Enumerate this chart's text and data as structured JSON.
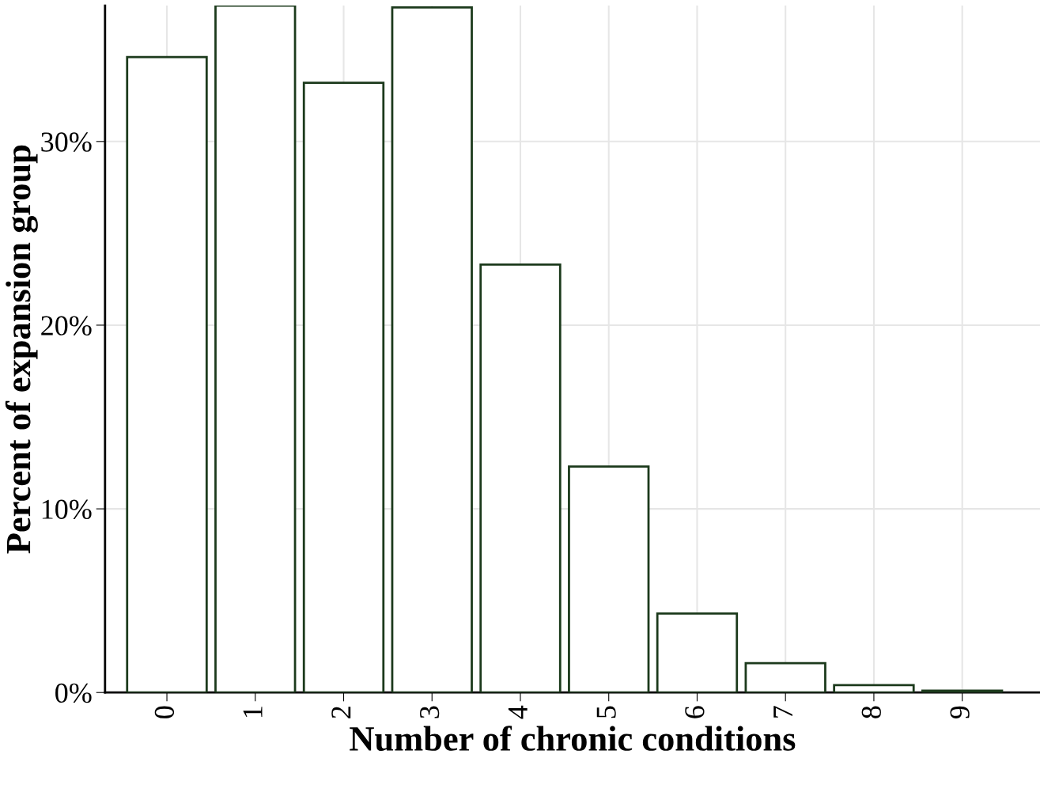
{
  "chart_data": {
    "type": "bar",
    "xlabel": "Number of chronic conditions",
    "ylabel": "Percent of expansion group",
    "categories": [
      "0",
      "1",
      "2",
      "3",
      "4",
      "5",
      "6",
      "7",
      "8",
      "9"
    ],
    "values": [
      34.6,
      37.4,
      33.2,
      37.3,
      23.3,
      12.3,
      4.3,
      1.6,
      0.4,
      0.1
    ],
    "color": "#1c3a1c",
    "ylim": [
      0,
      37.4
    ],
    "yticks": [
      {
        "value": 0,
        "label": "0%"
      },
      {
        "value": 10,
        "label": "10%"
      },
      {
        "value": 20,
        "label": "20%"
      },
      {
        "value": 30,
        "label": "30%"
      }
    ],
    "grid": true
  }
}
